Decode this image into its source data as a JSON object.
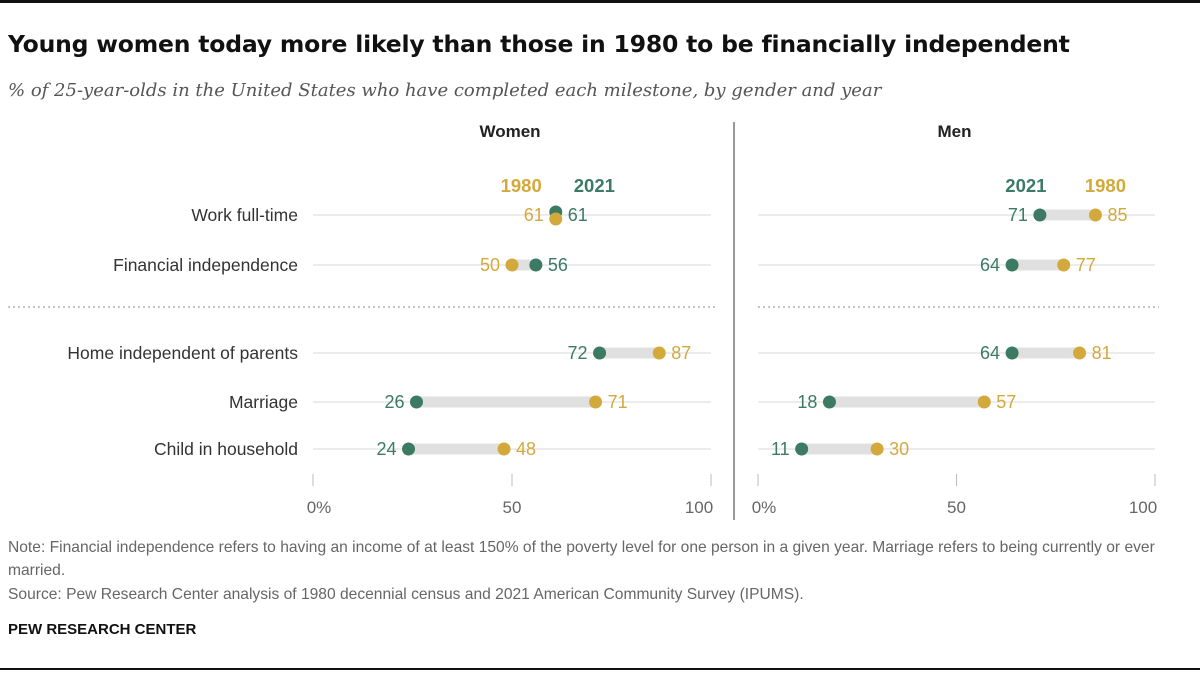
{
  "title": "Young women today more likely than those in 1980 to be financially independent",
  "subtitle": "% of 25-year-olds in the United States who have completed each milestone, by gender and year",
  "note": "Note: Financial independence refers to having an income of at least 150% of the poverty level for one person in a given year. Marriage refers to being currently or ever married.",
  "source": "Source: Pew Research Center analysis of 1980 decennial census and 2021 American Community Survey (IPUMS).",
  "credit": "PEW RESEARCH CENTER",
  "colors": {
    "y1980": "#d4a93c",
    "y2021": "#3c7a64",
    "bar": "#e0e0e0",
    "grid": "#d8d8d8"
  },
  "chart_data": {
    "type": "dot",
    "categories": [
      "Work full-time",
      "Financial independence",
      "Home independent of parents",
      "Marriage",
      "Child in household"
    ],
    "xlim": [
      0,
      100
    ],
    "xticks": [
      "0%",
      "50",
      "100"
    ],
    "panels": [
      {
        "name": "Women",
        "legend": [
          "1980",
          "2021"
        ],
        "series": [
          {
            "name": "1980",
            "values": [
              61,
              50,
              87,
              71,
              48
            ]
          },
          {
            "name": "2021",
            "values": [
              61,
              56,
              72,
              26,
              24
            ]
          }
        ]
      },
      {
        "name": "Men",
        "legend": [
          "2021",
          "1980"
        ],
        "series": [
          {
            "name": "1980",
            "values": [
              85,
              77,
              81,
              57,
              30
            ]
          },
          {
            "name": "2021",
            "values": [
              71,
              64,
              64,
              18,
              11
            ]
          }
        ]
      }
    ]
  }
}
